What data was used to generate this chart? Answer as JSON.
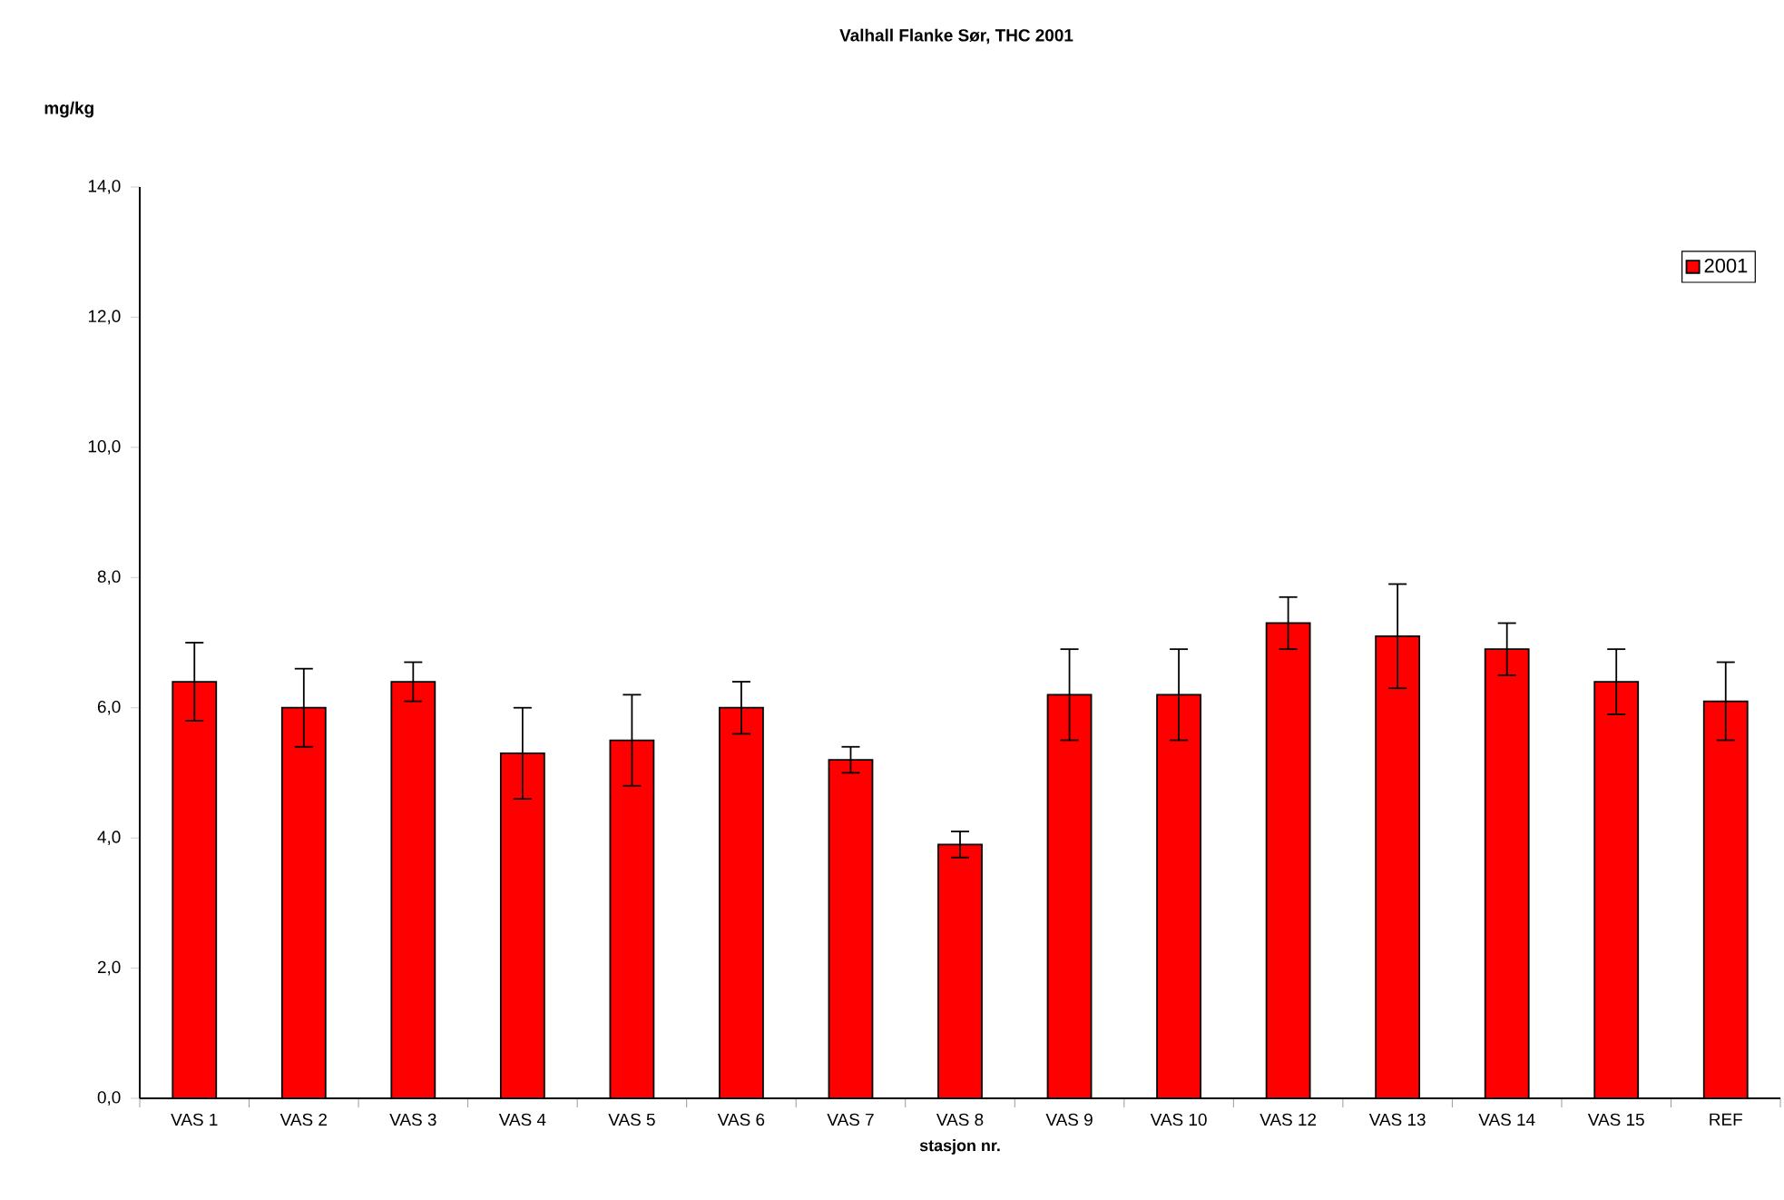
{
  "chart_data": {
    "type": "bar",
    "title": "Valhall Flanke Sør, THC 2001",
    "xlabel": "stasjon nr.",
    "ylabel": "mg/kg",
    "categories": [
      "VAS 1",
      "VAS 2",
      "VAS 3",
      "VAS 4",
      "VAS 5",
      "VAS 6",
      "VAS 7",
      "VAS 8",
      "VAS 9",
      "VAS 10",
      "VAS 12",
      "VAS 13",
      "VAS 14",
      "VAS 15",
      "REF"
    ],
    "series": [
      {
        "name": "2001",
        "color": "#ff0000",
        "values": [
          6.4,
          6.0,
          6.4,
          5.3,
          5.5,
          6.0,
          5.2,
          3.9,
          6.2,
          6.2,
          7.3,
          7.1,
          6.9,
          6.4,
          6.1
        ],
        "errors": [
          0.6,
          0.6,
          0.3,
          0.7,
          0.7,
          0.4,
          0.2,
          0.2,
          0.7,
          0.7,
          0.4,
          0.8,
          0.4,
          0.5,
          0.6
        ]
      }
    ],
    "ylim": [
      0,
      14
    ],
    "yticks": [
      {
        "value": 0,
        "label": "0,0"
      },
      {
        "value": 2,
        "label": "2,0"
      },
      {
        "value": 4,
        "label": "4,0"
      },
      {
        "value": 6,
        "label": "6,0"
      },
      {
        "value": 8,
        "label": "8,0"
      },
      {
        "value": 10,
        "label": "10,0"
      },
      {
        "value": 12,
        "label": "12,0"
      },
      {
        "value": 14,
        "label": "14,0"
      }
    ],
    "grid": false,
    "legend": "top right"
  }
}
